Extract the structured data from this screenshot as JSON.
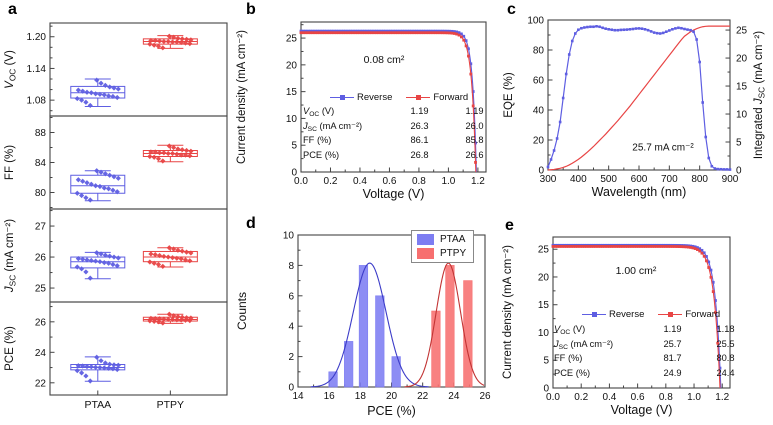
{
  "colors": {
    "blue": "#5e5ee2",
    "red": "#e84545",
    "hist_blue": "#7d7df2",
    "hist_red": "#f76f6f",
    "fit_blue": "#3c3cc8",
    "fit_red": "#c23434",
    "axis": "#444444"
  },
  "chart_data": [
    {
      "panel": "a",
      "type": "box",
      "categories": [
        "PTAA",
        "PTPY"
      ],
      "series_colors": [
        "blue",
        "red"
      ],
      "subplots": [
        {
          "key": "voc",
          "ylabel": [
            [
              "V",
              "i"
            ],
            [
              "OC",
              "sub"
            ],
            [
              " (V)",
              ""
            ]
          ],
          "ylim": [
            1.05,
            1.226
          ],
          "yticks": [
            1.08,
            1.14,
            1.2
          ],
          "ytick_labels": [
            "1.08",
            "1.14",
            "1.20"
          ],
          "yminors": [
            1.06,
            1.1,
            1.12,
            1.16,
            1.18,
            1.22
          ],
          "boxes": [
            {
              "lo": 1.068,
              "q1": 1.084,
              "med": 1.094,
              "q3": 1.106,
              "hi": 1.12,
              "points": [
                1.07,
                1.076,
                1.08,
                1.083,
                1.085,
                1.087,
                1.088,
                1.09,
                1.091,
                1.092,
                1.094,
                1.095,
                1.097,
                1.099,
                1.101,
                1.103,
                1.105,
                1.108,
                1.112,
                1.118
              ]
            },
            {
              "lo": 1.178,
              "q1": 1.186,
              "med": 1.191,
              "q3": 1.196,
              "hi": 1.202,
              "points": [
                1.179,
                1.182,
                1.184,
                1.186,
                1.187,
                1.188,
                1.189,
                1.19,
                1.19,
                1.191,
                1.191,
                1.192,
                1.193,
                1.193,
                1.194,
                1.195,
                1.196,
                1.197,
                1.199,
                1.201
              ]
            }
          ]
        },
        {
          "key": "ff",
          "ylabel": [
            [
              "FF (%)",
              ""
            ]
          ],
          "ylim": [
            77.8,
            90.2
          ],
          "yticks": [
            80,
            84,
            88
          ],
          "ytick_labels": [
            "80",
            "84",
            "88"
          ],
          "yminors": [
            78,
            82,
            86,
            90
          ],
          "boxes": [
            {
              "lo": 78.9,
              "q1": 79.9,
              "med": 80.9,
              "q3": 82.3,
              "hi": 82.9,
              "points": [
                79.0,
                79.3,
                79.6,
                79.9,
                80.1,
                80.3,
                80.5,
                80.6,
                80.8,
                80.9,
                81.1,
                81.3,
                81.5,
                81.7,
                81.9,
                82.1,
                82.3,
                82.5,
                82.7,
                82.9
              ]
            },
            {
              "lo": 84.1,
              "q1": 84.8,
              "med": 85.2,
              "q3": 85.6,
              "hi": 86.3,
              "points": [
                84.2,
                84.5,
                84.7,
                84.8,
                84.9,
                85.0,
                85.0,
                85.1,
                85.2,
                85.2,
                85.3,
                85.3,
                85.4,
                85.4,
                85.5,
                85.6,
                85.7,
                85.8,
                86.0,
                86.2
              ]
            }
          ]
        },
        {
          "key": "jsc",
          "ylabel": [
            [
              "J",
              "i"
            ],
            [
              "SC",
              "sub"
            ],
            [
              " (mA cm⁻²)",
              ""
            ]
          ],
          "ylim": [
            24.55,
            27.55
          ],
          "yticks": [
            25,
            26,
            27
          ],
          "ytick_labels": [
            "25",
            "26",
            "27"
          ],
          "yminors": [
            25.5,
            26.5,
            27.5
          ],
          "boxes": [
            {
              "lo": 25.3,
              "q1": 25.65,
              "med": 25.85,
              "q3": 26.0,
              "hi": 26.15,
              "points": [
                25.32,
                25.52,
                25.62,
                25.68,
                25.72,
                25.76,
                25.8,
                25.82,
                25.85,
                25.87,
                25.89,
                25.91,
                25.93,
                25.95,
                25.97,
                26.0,
                26.03,
                26.06,
                26.1,
                26.14
              ]
            },
            {
              "lo": 25.68,
              "q1": 25.85,
              "med": 26.0,
              "q3": 26.18,
              "hi": 26.3,
              "points": [
                25.7,
                25.76,
                25.8,
                25.84,
                25.88,
                25.91,
                25.94,
                25.96,
                25.98,
                26.0,
                26.02,
                26.05,
                26.08,
                26.1,
                26.13,
                26.16,
                26.19,
                26.22,
                26.26,
                26.3
              ]
            }
          ]
        },
        {
          "key": "pce",
          "ylabel": [
            [
              "PCE (%)",
              ""
            ]
          ],
          "ylim": [
            21.2,
            27.3
          ],
          "yticks": [
            22,
            24,
            26
          ],
          "ytick_labels": [
            "22",
            "24",
            "26"
          ],
          "yminors": [
            23,
            25,
            27
          ],
          "boxes": [
            {
              "lo": 22.1,
              "q1": 22.85,
              "med": 23.0,
              "q3": 23.2,
              "hi": 23.7,
              "points": [
                22.12,
                22.45,
                22.65,
                22.8,
                22.87,
                22.92,
                22.95,
                22.98,
                23.0,
                23.02,
                23.05,
                23.07,
                23.1,
                23.12,
                23.15,
                23.18,
                23.22,
                23.3,
                23.45,
                23.68
              ]
            },
            {
              "lo": 25.9,
              "q1": 26.05,
              "med": 26.15,
              "q3": 26.3,
              "hi": 26.5,
              "points": [
                25.92,
                26.0,
                26.03,
                26.06,
                26.08,
                26.1,
                26.12,
                26.13,
                26.15,
                26.16,
                26.18,
                26.2,
                26.21,
                26.23,
                26.25,
                26.27,
                26.3,
                26.34,
                26.4,
                26.5
              ]
            }
          ]
        }
      ]
    },
    {
      "panel": "b",
      "type": "jv",
      "area_label": "0.08 cm²",
      "xlabel": "Voltage (V)",
      "ylabel": "Current density (mA cm⁻²)",
      "xlim": [
        0,
        1.255
      ],
      "ylim": [
        0,
        28
      ],
      "xticks": [
        0,
        0.2,
        0.4,
        0.6,
        0.8,
        1.0,
        1.2
      ],
      "xtick_labels": [
        "0.0",
        "0.2",
        "0.4",
        "0.6",
        "0.8",
        "1.0",
        "1.2"
      ],
      "xminors": [
        0.1,
        0.3,
        0.5,
        0.7,
        0.9,
        1.1
      ],
      "yticks": [
        0,
        5,
        10,
        15,
        20,
        25
      ],
      "ytick_labels": [
        "0",
        "5",
        "10",
        "15",
        "20",
        "25"
      ],
      "yminors": [
        2.5,
        7.5,
        12.5,
        17.5,
        22.5,
        27.5
      ],
      "series": [
        {
          "name": "Reverse",
          "color": "blue",
          "jsc": 26.3,
          "voc": 1.19,
          "w": 0.026
        },
        {
          "name": "Forward",
          "color": "red",
          "jsc": 26.0,
          "voc": 1.186,
          "w": 0.028
        }
      ],
      "table": {
        "rows": [
          {
            "label": [
              [
                "V",
                "i"
              ],
              [
                "OC",
                "sub"
              ],
              [
                " (V)",
                ""
              ]
            ],
            "reverse": "1.19",
            "forward": "1.19"
          },
          {
            "label": [
              [
                "J",
                "i"
              ],
              [
                "SC",
                "sub"
              ],
              [
                " (mA cm⁻²)",
                ""
              ]
            ],
            "reverse": "26.3",
            "forward": "26.0"
          },
          {
            "label": [
              [
                "FF (%)",
                ""
              ]
            ],
            "reverse": "86.1",
            "forward": "85.8"
          },
          {
            "label": [
              [
                "PCE (%)",
                ""
              ]
            ],
            "reverse": "26.8",
            "forward": "26.6"
          }
        ]
      }
    },
    {
      "panel": "c",
      "type": "eqe",
      "annotation": "25.7 mA cm⁻²",
      "xlabel": "Wavelength (nm)",
      "ylabel_left": "EQE (%)",
      "ylabel_right": [
        [
          "Integrated ",
          ""
        ],
        [
          "J",
          "i"
        ],
        [
          "SC",
          "sub"
        ],
        [
          " (mA cm⁻²)",
          ""
        ]
      ],
      "xlim": [
        300,
        900
      ],
      "ylim_left": [
        0,
        100
      ],
      "ylim_right": [
        0,
        26.8
      ],
      "xticks": [
        300,
        400,
        500,
        600,
        700,
        800,
        900
      ],
      "xminors": [
        350,
        450,
        550,
        650,
        750,
        850
      ],
      "yticks_left": [
        0,
        20,
        40,
        60,
        80,
        100
      ],
      "yminors_left": [
        10,
        30,
        50,
        70,
        90
      ],
      "yticks_right": [
        0,
        5,
        10,
        15,
        20,
        25
      ],
      "yminors_right": [
        2.5,
        7.5,
        12.5,
        17.5,
        22.5
      ],
      "eqe_color": "blue",
      "jsc_color": "red",
      "wavelengths": [
        300,
        310,
        320,
        330,
        340,
        350,
        360,
        370,
        380,
        390,
        400,
        410,
        420,
        430,
        440,
        450,
        460,
        470,
        480,
        490,
        500,
        510,
        520,
        530,
        540,
        550,
        560,
        570,
        580,
        590,
        600,
        610,
        620,
        630,
        640,
        650,
        660,
        670,
        680,
        690,
        700,
        710,
        720,
        730,
        740,
        750,
        760,
        770,
        780,
        790,
        800,
        810,
        820,
        830,
        840,
        850,
        860,
        870,
        880,
        890,
        900
      ],
      "eqe": [
        2,
        7,
        13,
        21,
        32,
        48,
        64,
        77,
        86,
        91,
        93.5,
        94.5,
        95,
        95.3,
        95.5,
        95.5,
        95.8,
        95.5,
        94.8,
        94.2,
        93.8,
        93.5,
        93.2,
        93.2,
        93.4,
        93.5,
        93.6,
        93.8,
        94,
        94.3,
        94.4,
        94.2,
        93.8,
        93.2,
        92.4,
        91.6,
        91.2,
        91,
        91.4,
        92.2,
        93,
        93.8,
        94.4,
        94.8,
        94.5,
        94,
        93.6,
        93.2,
        92.2,
        87,
        72,
        45,
        22,
        8,
        2.5,
        1,
        0.6,
        0.5,
        0.4,
        0.4,
        0.3
      ],
      "integrated_jsc": [
        0,
        0.05,
        0.1,
        0.2,
        0.3,
        0.45,
        0.65,
        0.9,
        1.2,
        1.55,
        1.9,
        2.3,
        2.75,
        3.2,
        3.7,
        4.2,
        4.75,
        5.3,
        5.85,
        6.4,
        7,
        7.6,
        8.2,
        8.8,
        9.45,
        10.1,
        10.75,
        11.4,
        12.1,
        12.8,
        13.5,
        14.2,
        14.9,
        15.6,
        16.3,
        17,
        17.7,
        18.4,
        19.1,
        19.8,
        20.5,
        21.2,
        21.9,
        22.6,
        23.3,
        23.9,
        24.3,
        24.7,
        25,
        25.25,
        25.45,
        25.6,
        25.67,
        25.7,
        25.7,
        25.7,
        25.7,
        25.7,
        25.7,
        25.7,
        25.7
      ]
    },
    {
      "panel": "d",
      "type": "histogram",
      "xlabel": "PCE (%)",
      "ylabel": "Counts",
      "xlim": [
        14,
        26
      ],
      "ylim": [
        0,
        10
      ],
      "xticks": [
        14,
        16,
        18,
        20,
        22,
        24,
        26
      ],
      "xtick_labels": [
        "14",
        "16",
        "18",
        "20",
        "22",
        "24",
        "26"
      ],
      "xminors": [
        15,
        17,
        19,
        21,
        23,
        25
      ],
      "yticks": [
        0,
        2,
        4,
        6,
        8,
        10
      ],
      "ytick_labels": [
        "0",
        "2",
        "4",
        "6",
        "8",
        "10"
      ],
      "yminors": [
        1,
        3,
        5,
        7,
        9
      ],
      "bar_width": 0.55,
      "series": [
        {
          "name": "PTAA",
          "fill": "hist_blue",
          "line": "fit_blue",
          "bins": [
            [
              16.25,
              1
            ],
            [
              17.25,
              3
            ],
            [
              18.2,
              8
            ],
            [
              19.25,
              6
            ],
            [
              20.3,
              2
            ]
          ],
          "fit": {
            "mu": 18.6,
            "sigma": 1.05,
            "amp": 8.15
          }
        },
        {
          "name": "PTPY",
          "fill": "hist_red",
          "line": "fit_red",
          "bins": [
            [
              22.85,
              5
            ],
            [
              23.75,
              8
            ],
            [
              24.9,
              7
            ]
          ],
          "fit": {
            "mu": 23.65,
            "sigma": 0.78,
            "amp": 8.15
          }
        }
      ]
    },
    {
      "panel": "e",
      "type": "jv",
      "area_label": "1.00 cm²",
      "xlabel": "Voltage (V)",
      "ylabel": "Current density (mA cm⁻²)",
      "xlim": [
        0,
        1.255
      ],
      "ylim": [
        0,
        27.2
      ],
      "xticks": [
        0,
        0.2,
        0.4,
        0.6,
        0.8,
        1.0,
        1.2
      ],
      "xtick_labels": [
        "0.0",
        "0.2",
        "0.4",
        "0.6",
        "0.8",
        "1.0",
        "1.2"
      ],
      "xminors": [
        0.1,
        0.3,
        0.5,
        0.7,
        0.9,
        1.1
      ],
      "yticks": [
        0,
        5,
        10,
        15,
        20,
        25
      ],
      "ytick_labels": [
        "0",
        "5",
        "10",
        "15",
        "20",
        "25"
      ],
      "yminors": [
        2.5,
        7.5,
        12.5,
        17.5,
        22.5
      ],
      "series": [
        {
          "name": "Reverse",
          "color": "blue",
          "jsc": 25.7,
          "voc": 1.19,
          "w": 0.04
        },
        {
          "name": "Forward",
          "color": "red",
          "jsc": 25.5,
          "voc": 1.184,
          "w": 0.042
        }
      ],
      "table": {
        "rows": [
          {
            "label": [
              [
                "V",
                "i"
              ],
              [
                "OC",
                "sub"
              ],
              [
                " (V)",
                ""
              ]
            ],
            "reverse": "1.19",
            "forward": "1.18"
          },
          {
            "label": [
              [
                "J",
                "i"
              ],
              [
                "SC",
                "sub"
              ],
              [
                " (mA cm⁻²)",
                ""
              ]
            ],
            "reverse": "25.7",
            "forward": "25.5"
          },
          {
            "label": [
              [
                "FF (%)",
                ""
              ]
            ],
            "reverse": "81.7",
            "forward": "80.8"
          },
          {
            "label": [
              [
                "PCE (%)",
                ""
              ]
            ],
            "reverse": "24.9",
            "forward": "24.4"
          }
        ]
      }
    }
  ]
}
